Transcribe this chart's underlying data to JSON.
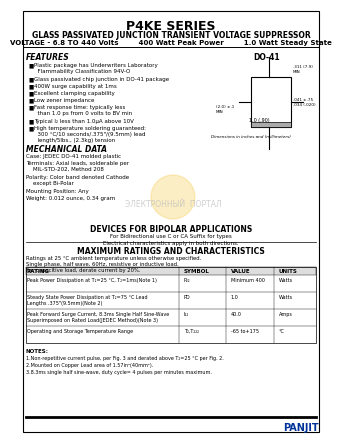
{
  "title": "P4KE SERIES",
  "subtitle": "GLASS PASSIVATED JUNCTION TRANSIENT VOLTAGE SUPPRESSOR",
  "subtitle2": "VOLTAGE - 6.8 TO 440 Volts        400 Watt Peak Power        1.0 Watt Steady State",
  "features_title": "FEATURES",
  "features": [
    "Plastic package has Underwriters Laboratory\n  Flammability Classification 94V-O",
    "Glass passivated chip junction in DO-41 package",
    "400W surge capability at 1ms",
    "Excellent clamping capability",
    "Low zener impedance",
    "Fast response time: typically less\n  than 1.0 ps from 0 volts to BV min",
    "Typical I₂ less than 1.0μA above 10V",
    "High temperature soldering guaranteed:\n  300 °C/10 seconds/.375\"/(9.5mm) lead\n  length/5lbs., (2.3kg) tension"
  ],
  "mech_title": "MECHANICAL DATA",
  "mech_data": [
    "Case: JEDEC DO-41 molded plastic",
    "Terminals: Axial leads, solderable per\n    MIL-STD-202, Method 208",
    "Polarity: Color band denoted Cathode\n    except Bi-Polar",
    "Mounting Position: Any",
    "Weight: 0.012 ounce, 0.34 gram"
  ],
  "bipolar_title": "DEVICES FOR BIPOLAR APPLICATIONS",
  "bipolar_text": "For Bidirectional use C or CA Suffix for types\nElectrical characteristics apply in both directions.",
  "ratings_title": "MAXIMUM RATINGS AND CHARACTERISTICS",
  "ratings_note": "Ratings at 25 °C ambient temperature unless otherwise specified.\nSingle phase, half wave, 60Hz, resistive or inductive load.\nFor capacitive load, derate current by 20%.",
  "table_headers": [
    "RATING",
    "SYMBOL",
    "VALUE",
    "UNITS"
  ],
  "table_rows": [
    [
      "Peak Power Dissipation at T₂=25 °C, T₂=1ms(Note 1)",
      "P₂₂",
      "Minimum 400",
      "Watts"
    ],
    [
      "Steady State Power Dissipation at T₂=75 °C Lead\nLengths .375\"(9.5mm)(Note 2)",
      "PD",
      "1.0",
      "Watts"
    ],
    [
      "Peak Forward Surge Current, 8.3ms Single Half Sine-Wave\nSuperimposed on Rated Load(JEDEC Method)(Note 3)",
      "I₂₂",
      "40.0",
      "Amps"
    ],
    [
      "Operating and Storage Temperature Range",
      "T₂,T₂₂₂",
      "-65 to+175",
      "°C"
    ]
  ],
  "notes_title": "NOTES:",
  "notes": [
    "1.Non-repetitive current pulse, per Fig. 3 and derated above T₂=25 °C per Fig. 2.",
    "2.Mounted on Copper Lead area of 1.57in²(40mm²).",
    "3.8.3ms single half sine-wave, duty cycle= 4 pulses per minutes maximum."
  ],
  "do41_label": "DO-41",
  "bg_color": "#ffffff",
  "border_color": "#000000",
  "watermark_text": "ЭЛЕКТРОННЫЙ  ПОРТАЛ",
  "panjit_text": "PANJIT"
}
